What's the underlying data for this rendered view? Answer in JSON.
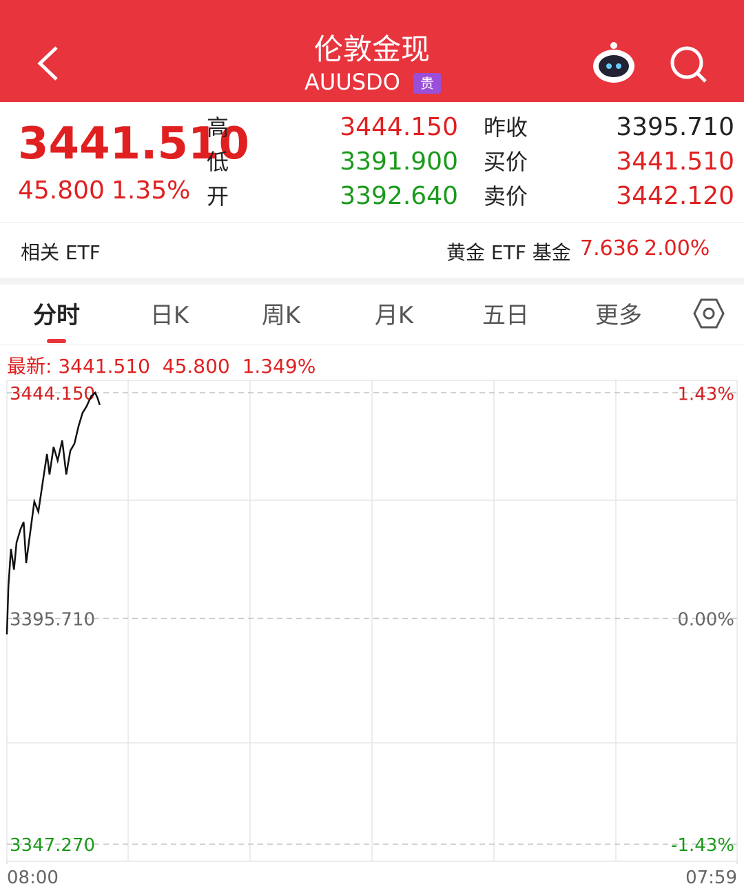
{
  "header": {
    "title": "伦敦金现",
    "code": "AUUSDO",
    "badge": "贵"
  },
  "quote": {
    "price": "3441.510",
    "change": "45.800",
    "change_pct": "1.35%",
    "left_labels": [
      "高",
      "低",
      "开"
    ],
    "left_values": [
      "3444.150",
      "3391.900",
      "3392.640"
    ],
    "right_labels": [
      "昨收",
      "买价",
      "卖价"
    ],
    "right_values": [
      "3395.710",
      "3441.510",
      "3442.120"
    ]
  },
  "etf": {
    "label": "相关 ETF",
    "fund": "黄金 ETF 基金",
    "price": "7.636",
    "pct": "2.00%"
  },
  "tabs": [
    "分时",
    "日K",
    "周K",
    "月K",
    "五日",
    "更多"
  ],
  "latest": {
    "label": "最新:",
    "price": "3441.510",
    "change": "45.800",
    "pct": "1.349%"
  },
  "chart_data": {
    "type": "line",
    "x": [
      0,
      3,
      8,
      14,
      19,
      27,
      33,
      38,
      46,
      54,
      62,
      71,
      79,
      84,
      92,
      100,
      109,
      117,
      125,
      133,
      141,
      149,
      157,
      166,
      174,
      179,
      183
    ],
    "series": [
      {
        "name": "price",
        "color": "#111111",
        "values": [
          3392.3,
          3402.6,
          3410.6,
          3406.2,
          3412.0,
          3414.9,
          3416.4,
          3407.6,
          3414.2,
          3420.8,
          3418.6,
          3425.2,
          3431.0,
          3426.6,
          3432.5,
          3429.6,
          3433.9,
          3426.6,
          3431.7,
          3433.2,
          3436.9,
          3439.8,
          3441.2,
          3443.4,
          3444.15,
          3442.9,
          3441.51
        ]
      }
    ],
    "xlim": [
      0,
      1439
    ],
    "xticks": [
      {
        "value": 0,
        "label": "08:00"
      },
      {
        "value": 1439,
        "label": "07:59"
      }
    ],
    "ylim": [
      3343.6,
      3446.8
    ],
    "yticks": [
      {
        "value": 3444.15,
        "label": "3444.150"
      },
      {
        "value": 3395.71,
        "label": "3395.710"
      },
      {
        "value": 3347.27,
        "label": "3347.270"
      }
    ],
    "y2lim": [
      -1.54,
      1.51
    ],
    "y2ticks": [
      {
        "value": 1.43,
        "label": "1.43%"
      },
      {
        "value": 0,
        "label": "0.00%"
      },
      {
        "value": -1.43,
        "label": "-1.43%"
      }
    ]
  }
}
